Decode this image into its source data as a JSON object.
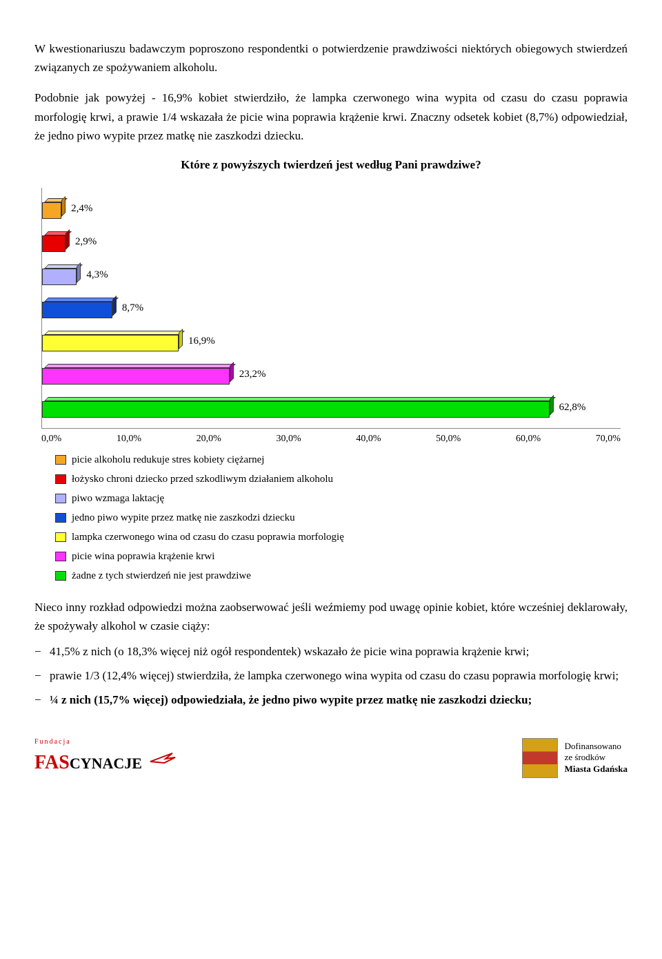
{
  "paragraphs": {
    "p1": "W kwestionariuszu badawczym poproszono respondentki o potwierdzenie prawdziwości niektórych obiegowych stwierdzeń związanych ze spożywaniem alkoholu.",
    "p2": "Podobnie jak powyżej - 16,9% kobiet stwierdziło, że lampka czerwonego wina wypita od czasu do czasu poprawia morfologię krwi, a prawie 1/4 wskazała że picie wina poprawia krążenie krwi. Znaczny odsetek kobiet (8,7%) odpowiedział, że jedno piwo wypite przez matkę nie zaszkodzi dziecku.",
    "chart_title": "Które z powyższych twierdzeń jest według Pani prawdziwe?",
    "p3": "Nieco inny rozkład odpowiedzi można zaobserwować jeśli weźmiemy pod uwagę opinie kobiet, które wcześniej deklarowały, że spożywały alkohol w czasie ciąży:",
    "li1": "41,5% z nich (o 18,3% więcej niż ogół respondentek) wskazało że picie wina poprawia krążenie krwi;",
    "li2": "prawie 1/3 (12,4% więcej) stwierdziła, że lampka czerwonego wina wypita od czasu do czasu poprawia morfologię krwi;",
    "li3_a": "¼ z nich (15,7% więcej) odpowiedziała, że jedno piwo wypite przez matkę nie zaszkodzi dziecku;"
  },
  "chart": {
    "type": "bar-horizontal-3d",
    "xlim_max": 70,
    "xtick_labels": [
      "0,0%",
      "10,0%",
      "20,0%",
      "30,0%",
      "40,0%",
      "50,0%",
      "60,0%",
      "70,0%"
    ],
    "bars": [
      {
        "value": 2.4,
        "label": "2,4%",
        "face": "#f5a623",
        "top": "#f8c36a",
        "side": "#c97e0d"
      },
      {
        "value": 2.9,
        "label": "2,9%",
        "face": "#e80000",
        "top": "#ff5a5a",
        "side": "#a60000"
      },
      {
        "value": 4.3,
        "label": "4,3%",
        "face": "#b0b0ff",
        "top": "#d0d0ff",
        "side": "#7a7acc"
      },
      {
        "value": 8.7,
        "label": "8,7%",
        "face": "#1050d8",
        "top": "#5a8aff",
        "side": "#0a2f85"
      },
      {
        "value": 16.9,
        "label": "16,9%",
        "face": "#ffff33",
        "top": "#ffff99",
        "side": "#cccc00"
      },
      {
        "value": 23.2,
        "label": "23,2%",
        "face": "#ff33ff",
        "top": "#ff99ff",
        "side": "#b000b0"
      },
      {
        "value": 62.8,
        "label": "62,8%",
        "face": "#00e000",
        "top": "#66ff66",
        "side": "#009900"
      }
    ],
    "legend": [
      {
        "color": "#f5a623",
        "text": "picie alkoholu redukuje stres kobiety ciężarnej"
      },
      {
        "color": "#e80000",
        "text": "łożysko chroni dziecko przed szkodliwym działaniem alkoholu"
      },
      {
        "color": "#b0b0ff",
        "text": "piwo wzmaga laktację"
      },
      {
        "color": "#1050d8",
        "text": "jedno piwo wypite przez matkę nie zaszkodzi dziecku"
      },
      {
        "color": "#ffff33",
        "text": "lampka czerwonego wina od czasu do czasu poprawia morfologię"
      },
      {
        "color": "#ff33ff",
        "text": "picie wina poprawia krążenie krwi"
      },
      {
        "color": "#00e000",
        "text": "żadne z tych stwierdzeń nie jest prawdziwe"
      }
    ]
  },
  "footer": {
    "fundacja": "Fundacja",
    "fas": "FAS",
    "cynacje": "CYNACJE",
    "dofinans": "Dofinansowano",
    "ze": "ze środków",
    "miasta": "Miasta Gdańska"
  }
}
